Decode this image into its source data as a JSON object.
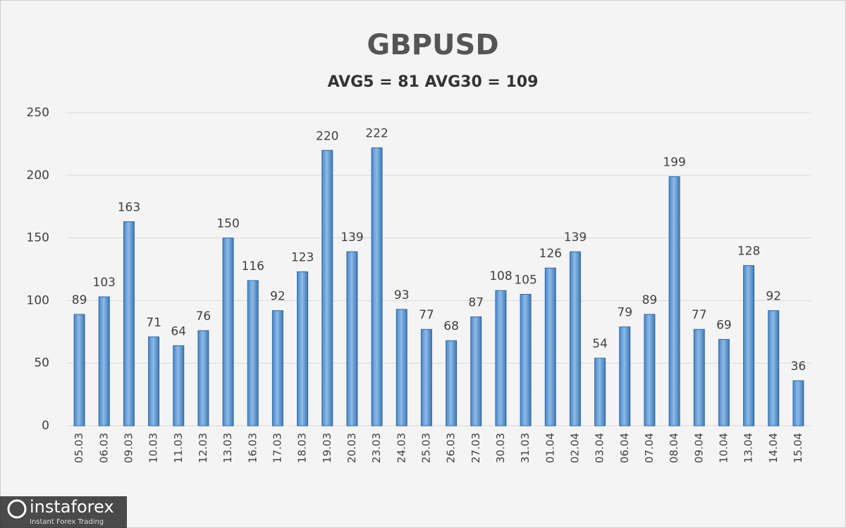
{
  "chart_data": {
    "type": "bar",
    "title": "GBPUSD",
    "subtitle": "AVG5 = 81 AVG30 = 109",
    "categories": [
      "05.03",
      "06.03",
      "09.03",
      "10.03",
      "11.03",
      "12.03",
      "13.03",
      "16.03",
      "17.03",
      "18.03",
      "19.03",
      "20.03",
      "23.03",
      "24.03",
      "25.03",
      "26.03",
      "27.03",
      "30.03",
      "31.03",
      "01.04",
      "02.04",
      "03.04",
      "06.04",
      "07.04",
      "08.04",
      "09.04",
      "10.04",
      "13.04",
      "14.04",
      "15.04"
    ],
    "values": [
      89,
      103,
      163,
      71,
      64,
      76,
      150,
      116,
      92,
      123,
      220,
      139,
      222,
      93,
      77,
      68,
      87,
      108,
      105,
      126,
      139,
      54,
      79,
      89,
      199,
      77,
      69,
      128,
      92,
      36
    ],
    "color": "#5b9bd5",
    "ylim": [
      0,
      250
    ],
    "yticks": [
      0,
      50,
      100,
      150,
      200,
      250
    ],
    "grid": true
  },
  "watermark": {
    "brand": "instaforex",
    "tagline": "Instant Forex Trading"
  }
}
